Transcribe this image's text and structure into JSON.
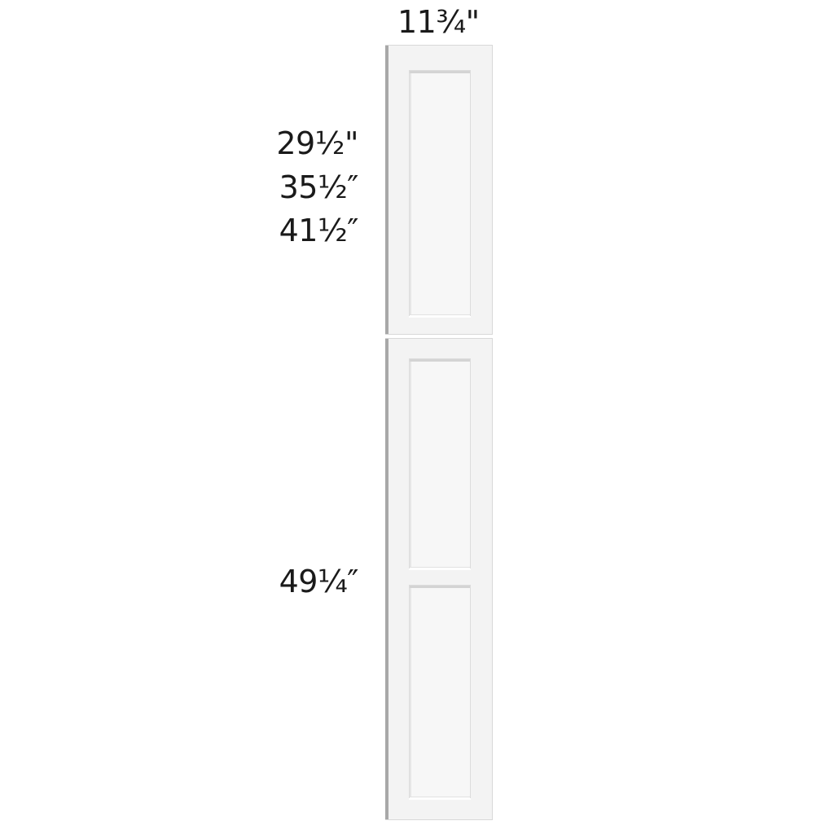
{
  "dimensions": {
    "width": "11¾\"",
    "heights": [
      "29½\"",
      "35½″",
      "41½″"
    ],
    "lower_height": "49¼″"
  },
  "colors": {
    "door": "#f3f3f3",
    "edge": "#a8a8a8",
    "text": "#1a1a1a"
  }
}
